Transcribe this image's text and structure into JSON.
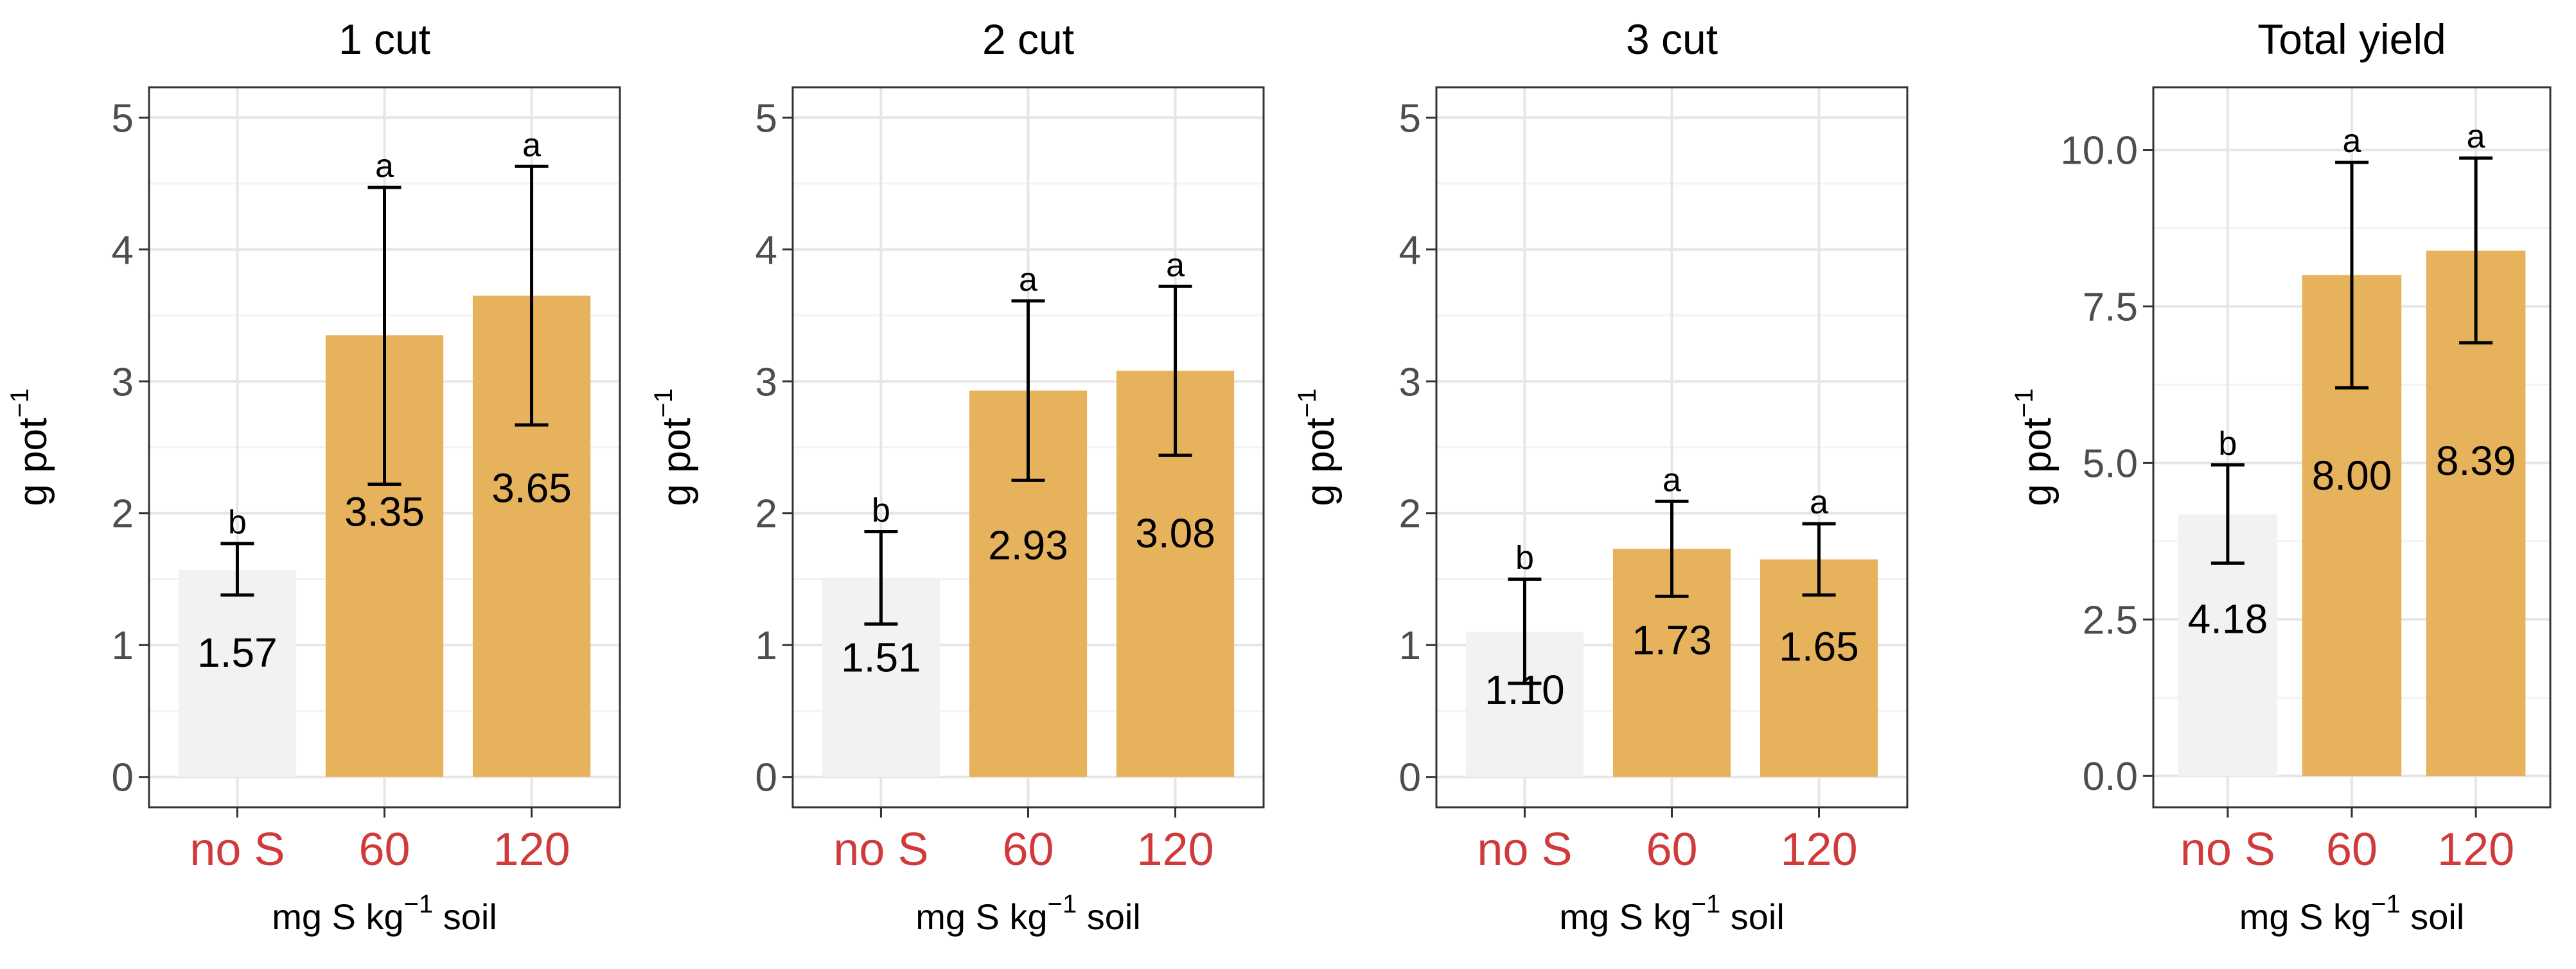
{
  "chart_data": [
    {
      "type": "bar",
      "title": "1 cut",
      "categories": [
        "no S",
        "60",
        "120"
      ],
      "values": [
        1.57,
        3.35,
        3.65
      ],
      "value_labels": [
        "1.57",
        "3.35",
        "3.65"
      ],
      "error_low": [
        1.38,
        2.22,
        2.67
      ],
      "error_high": [
        1.77,
        4.47,
        4.63
      ],
      "significance": [
        "b",
        "a",
        "a"
      ],
      "ylabel": "g pot",
      "ylabel_sup": "−1",
      "xlabel_pre": "mg S kg",
      "xlabel_sup": "−1",
      "xlabel_post": " soil",
      "ylim": [
        -0.23,
        5.23
      ],
      "yticks": [
        0,
        1,
        2,
        3,
        4,
        5
      ],
      "ytick_labels": [
        "0",
        "1",
        "2",
        "3",
        "4",
        "5"
      ],
      "grid": true
    },
    {
      "type": "bar",
      "title": "2 cut",
      "categories": [
        "no S",
        "60",
        "120"
      ],
      "values": [
        1.51,
        2.93,
        3.08
      ],
      "value_labels": [
        "1.51",
        "2.93",
        "3.08"
      ],
      "error_low": [
        1.16,
        2.25,
        2.44
      ],
      "error_high": [
        1.86,
        3.61,
        3.72
      ],
      "significance": [
        "b",
        "a",
        "a"
      ],
      "ylabel": "g pot",
      "ylabel_sup": "−1",
      "xlabel_pre": "mg S kg",
      "xlabel_sup": "−1",
      "xlabel_post": " soil",
      "ylim": [
        -0.23,
        5.23
      ],
      "yticks": [
        0,
        1,
        2,
        3,
        4,
        5
      ],
      "ytick_labels": [
        "0",
        "1",
        "2",
        "3",
        "4",
        "5"
      ],
      "grid": true
    },
    {
      "type": "bar",
      "title": "3 cut",
      "categories": [
        "no S",
        "60",
        "120"
      ],
      "values": [
        1.1,
        1.73,
        1.65
      ],
      "value_labels": [
        "1.10",
        "1.73",
        "1.65"
      ],
      "error_low": [
        0.71,
        1.37,
        1.38
      ],
      "error_high": [
        1.5,
        2.09,
        1.92
      ],
      "significance": [
        "b",
        "a",
        "a"
      ],
      "ylabel": "g pot",
      "ylabel_sup": "−1",
      "xlabel_pre": "mg S kg",
      "xlabel_sup": "−1",
      "xlabel_post": " soil",
      "ylim": [
        -0.23,
        5.23
      ],
      "yticks": [
        0,
        1,
        2,
        3,
        4,
        5
      ],
      "ytick_labels": [
        "0",
        "1",
        "2",
        "3",
        "4",
        "5"
      ],
      "grid": true
    },
    {
      "type": "bar",
      "title": "Total yield",
      "categories": [
        "no S",
        "60",
        "120"
      ],
      "values": [
        4.18,
        8.0,
        8.39
      ],
      "value_labels": [
        "4.18",
        "8.00",
        "8.39"
      ],
      "error_low": [
        3.4,
        6.2,
        6.92
      ],
      "error_high": [
        4.97,
        9.8,
        9.87
      ],
      "significance": [
        "b",
        "a",
        "a"
      ],
      "ylabel": "g pot",
      "ylabel_sup": "−1",
      "xlabel_pre": "mg S kg",
      "xlabel_sup": "−1",
      "xlabel_post": " soil",
      "ylim": [
        -0.5,
        11.0
      ],
      "yticks": [
        0,
        2.5,
        5,
        7.5,
        10
      ],
      "ytick_labels": [
        "0.0",
        "2.5",
        "5.0",
        "7.5",
        "10.0"
      ],
      "grid": true
    }
  ],
  "colors": {
    "control_bar": "#f2f2f2",
    "treatment_bar": "#e6b25c",
    "category_label": "#d03a3a",
    "grid_major": "#e6e6e6",
    "grid_minor": "#f3f3f3",
    "panel_border": "#333333",
    "error_bar": "#000000"
  }
}
